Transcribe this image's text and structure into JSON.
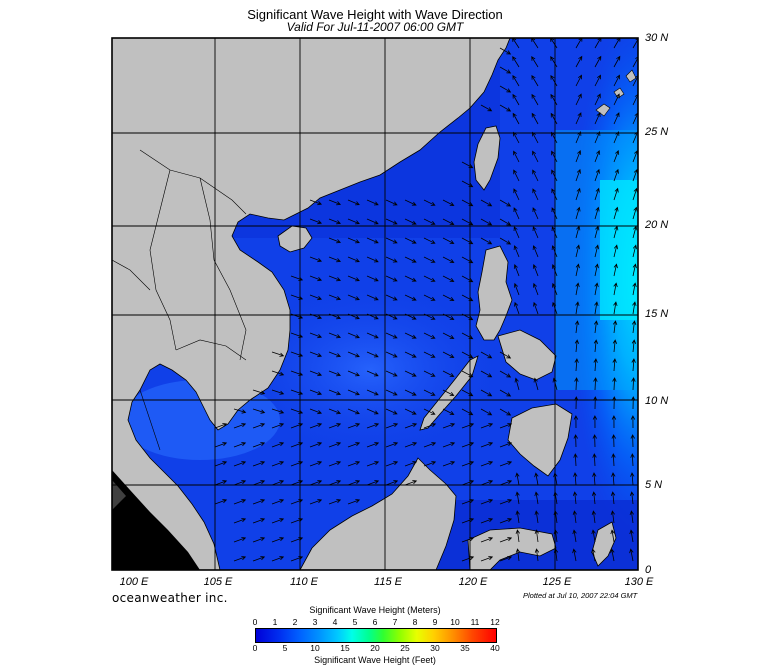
{
  "header": {
    "title": "Significant Wave Height with Wave Direction",
    "subtitle": "Valid For Jul-11-2007 06:00 GMT"
  },
  "map": {
    "lat_labels": [
      "30 N",
      "25 N",
      "20 N",
      "15 N",
      "10 N",
      "5 N",
      "0"
    ],
    "lon_labels": [
      "100 E",
      "105 E",
      "110 E",
      "115 E",
      "120 E",
      "125 E",
      "130 E"
    ],
    "land_color": "#c0c0c0",
    "ocean_base_color": "#1040e8",
    "arrow_color": "#000000"
  },
  "footer": {
    "brand": "oceanweather inc.",
    "plotted": "Plotted at Jul 10, 2007 22:04 GMT"
  },
  "legend": {
    "title_meters": "Significant Wave Height (Meters)",
    "title_feet": "Significant Wave Height (Feet)",
    "meters_ticks": [
      "0",
      "1",
      "2",
      "3",
      "4",
      "5",
      "6",
      "7",
      "8",
      "9",
      "10",
      "11",
      "12"
    ],
    "feet_ticks": [
      "0",
      "5",
      "10",
      "15",
      "20",
      "25",
      "30",
      "35",
      "40"
    ]
  }
}
